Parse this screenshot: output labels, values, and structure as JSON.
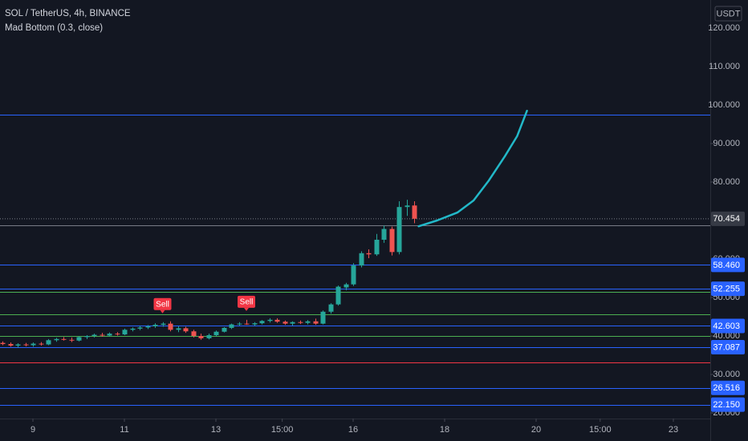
{
  "chart_data": {
    "type": "candlestick",
    "title": "SOL / TetherUS, 4h, BINANCE",
    "subtitle": "Mad Bottom (0.3, close)",
    "currency": "USDT",
    "x": [
      -4,
      -3,
      -2,
      -1,
      0,
      1,
      2,
      3,
      4,
      5,
      6,
      7,
      8,
      9,
      10,
      11,
      12,
      13,
      14,
      15,
      16,
      17,
      18,
      19,
      20,
      21,
      22,
      23,
      24,
      25,
      26,
      27,
      28,
      29,
      30,
      31,
      32,
      33,
      34,
      35,
      36,
      37,
      38,
      39,
      40,
      41,
      42,
      43,
      44,
      45,
      46,
      47,
      48,
      49,
      50
    ],
    "open": [
      38.2,
      37.9,
      37.5,
      37.8,
      37.6,
      38.0,
      37.8,
      38.9,
      39.2,
      39.0,
      38.8,
      39.7,
      40.0,
      40.3,
      40.1,
      40.6,
      40.4,
      41.6,
      41.9,
      42.2,
      42.5,
      42.9,
      43.2,
      41.6,
      42.0,
      41.2,
      40.0,
      39.4,
      40.2,
      41.1,
      42.1,
      43.0,
      43.2,
      43.0,
      43.3,
      43.9,
      44.2,
      43.7,
      43.2,
      43.6,
      43.4,
      43.8,
      43.2,
      46.3,
      48.2,
      52.6,
      53.4,
      58.3,
      61.5,
      61.2,
      65.0,
      67.8,
      61.8,
      73.5,
      73.9
    ],
    "high": [
      38.6,
      38.3,
      38.1,
      38.2,
      38.3,
      38.4,
      39.2,
      39.5,
      39.7,
      39.6,
      39.9,
      40.2,
      40.6,
      40.8,
      40.9,
      41.0,
      41.9,
      42.2,
      42.6,
      42.8,
      43.3,
      43.6,
      43.8,
      42.5,
      42.4,
      41.6,
      40.6,
      40.6,
      41.4,
      42.3,
      43.2,
      43.6,
      44.2,
      43.6,
      44.1,
      44.6,
      44.6,
      44.0,
      43.8,
      44.0,
      44.1,
      44.5,
      46.6,
      48.5,
      53.1,
      53.8,
      58.9,
      62.0,
      62.5,
      66.5,
      68.7,
      68.4,
      75.0,
      75.4,
      75.0
    ],
    "low": [
      37.6,
      37.2,
      37.0,
      37.3,
      37.2,
      37.5,
      37.6,
      38.5,
      38.8,
      38.4,
      38.6,
      39.2,
      39.6,
      39.8,
      39.9,
      40.1,
      40.2,
      41.2,
      41.5,
      41.8,
      42.1,
      42.4,
      41.2,
      41.0,
      40.8,
      39.6,
      39.0,
      39.1,
      39.9,
      40.9,
      41.8,
      42.7,
      42.9,
      42.6,
      43.0,
      43.5,
      43.4,
      42.9,
      42.7,
      43.1,
      43.0,
      42.9,
      43.0,
      45.8,
      47.9,
      51.9,
      53.0,
      57.8,
      60.2,
      60.8,
      64.2,
      60.9,
      61.2,
      71.2,
      69.3
    ],
    "close": [
      37.9,
      37.5,
      37.8,
      37.6,
      38.0,
      37.8,
      38.9,
      39.2,
      39.0,
      38.8,
      39.7,
      40.0,
      40.3,
      40.1,
      40.6,
      40.4,
      41.6,
      41.9,
      42.2,
      42.5,
      42.9,
      43.2,
      41.6,
      42.0,
      41.2,
      40.0,
      39.4,
      40.2,
      41.1,
      42.1,
      43.0,
      43.2,
      43.0,
      43.3,
      43.9,
      44.2,
      43.7,
      43.2,
      43.6,
      43.4,
      43.8,
      43.2,
      46.3,
      48.2,
      52.8,
      53.4,
      58.3,
      61.5,
      61.2,
      65.0,
      67.8,
      61.8,
      73.5,
      73.9,
      70.454
    ],
    "up_color": "#26a69a",
    "down_color": "#ef5350",
    "projection": {
      "x": [
        50.6,
        53,
        55.7,
        57.8,
        59.8,
        61.9,
        63.5,
        64.8
      ],
      "values": [
        68.5,
        70,
        72.1,
        75.2,
        80.4,
        86.7,
        91.9,
        98.5
      ],
      "color": "#22b8c8"
    },
    "annotations": [
      {
        "x": 17,
        "text": "Sell"
      },
      {
        "x": 28,
        "text": "Sell"
      }
    ],
    "price_lines": {
      "values": [
        58.46,
        52.255,
        42.603,
        37.087,
        26.516,
        22.15
      ],
      "value_labels": [
        "58.460",
        "52.255",
        "42.603",
        "37.087",
        "26.516",
        "22.150"
      ],
      "color": "#2962ff"
    },
    "extra_lines": {
      "values": [
        97.5,
        68.8,
        51.5,
        45.6,
        39.9,
        33.2
      ],
      "colors": [
        "#2962ff",
        "#787b86",
        "#4caf50",
        "#4caf50",
        "#4caf50",
        "#f23645"
      ]
    },
    "last_price": 70.454,
    "xlim": [
      -4.316,
      88.842
    ],
    "ylim": [
      18.54,
      127.29
    ],
    "xticks": [
      {
        "value": 0,
        "label": "9"
      },
      {
        "value": 12,
        "label": "11"
      },
      {
        "value": 24,
        "label": "13"
      },
      {
        "value": 32.7,
        "label": "15:00"
      },
      {
        "value": 42,
        "label": "16"
      },
      {
        "value": 54,
        "label": "18"
      },
      {
        "value": 66,
        "label": "20"
      },
      {
        "value": 74.4,
        "label": "15:00"
      },
      {
        "value": 84,
        "label": "23"
      }
    ],
    "yticks": [
      {
        "value": 120,
        "label": "120.000"
      },
      {
        "value": 110,
        "label": "110.000"
      },
      {
        "value": 100,
        "label": "100.000"
      },
      {
        "value": 90,
        "label": "90.000"
      },
      {
        "value": 80,
        "label": "80.000"
      },
      {
        "value": 60,
        "label": "60.000"
      },
      {
        "value": 50,
        "label": "50.000"
      },
      {
        "value": 40,
        "label": "40.000"
      },
      {
        "value": 30,
        "label": "30.000"
      },
      {
        "value": 20,
        "label": "20.000"
      }
    ],
    "grid": false
  }
}
